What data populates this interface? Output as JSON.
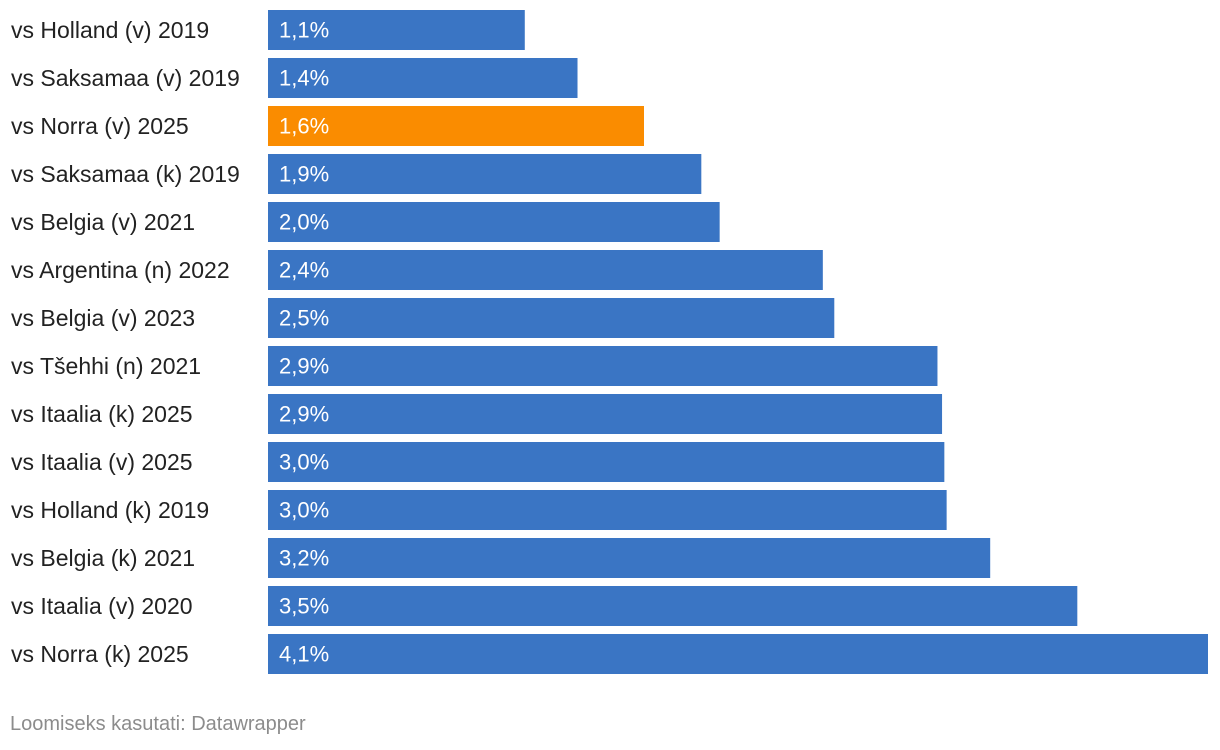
{
  "chart_data": {
    "type": "bar",
    "orientation": "horizontal",
    "title": "",
    "xlabel": "",
    "ylabel": "",
    "xlim": [
      0,
      4.1
    ],
    "grid": false,
    "categories": [
      "vs Holland (v) 2019",
      "vs Saksamaa (v) 2019",
      "vs Norra (v) 2025",
      "vs Saksamaa (k) 2019",
      "vs Belgia (v) 2021",
      "vs Argentina (n) 2022",
      "vs Belgia (v) 2023",
      "vs Tšehhi (n) 2021",
      "vs Itaalia (k) 2025",
      "vs Itaalia (v) 2025",
      "vs Holland (k) 2019",
      "vs Belgia (k) 2021",
      "vs Itaalia (v) 2020",
      "vs Norra (k) 2025"
    ],
    "values": [
      1.12,
      1.35,
      1.64,
      1.89,
      1.97,
      2.42,
      2.47,
      2.92,
      2.94,
      2.95,
      2.96,
      3.15,
      3.53,
      4.1
    ],
    "data_labels": [
      "1,1%",
      "1,4%",
      "1,6%",
      "1,9%",
      "2,0%",
      "2,4%",
      "2,5%",
      "2,9%",
      "2,9%",
      "3,0%",
      "3,0%",
      "3,2%",
      "3,5%",
      "4,1%"
    ],
    "highlight_index": 2,
    "colors": {
      "bar": "#3a75c4",
      "highlight": "#fa8c00",
      "label_text": "#222222",
      "bar_text": "#ffffff",
      "credit_text": "#8c8c8c"
    }
  },
  "footer": {
    "credit": "Loomiseks kasutati: Datawrapper"
  }
}
